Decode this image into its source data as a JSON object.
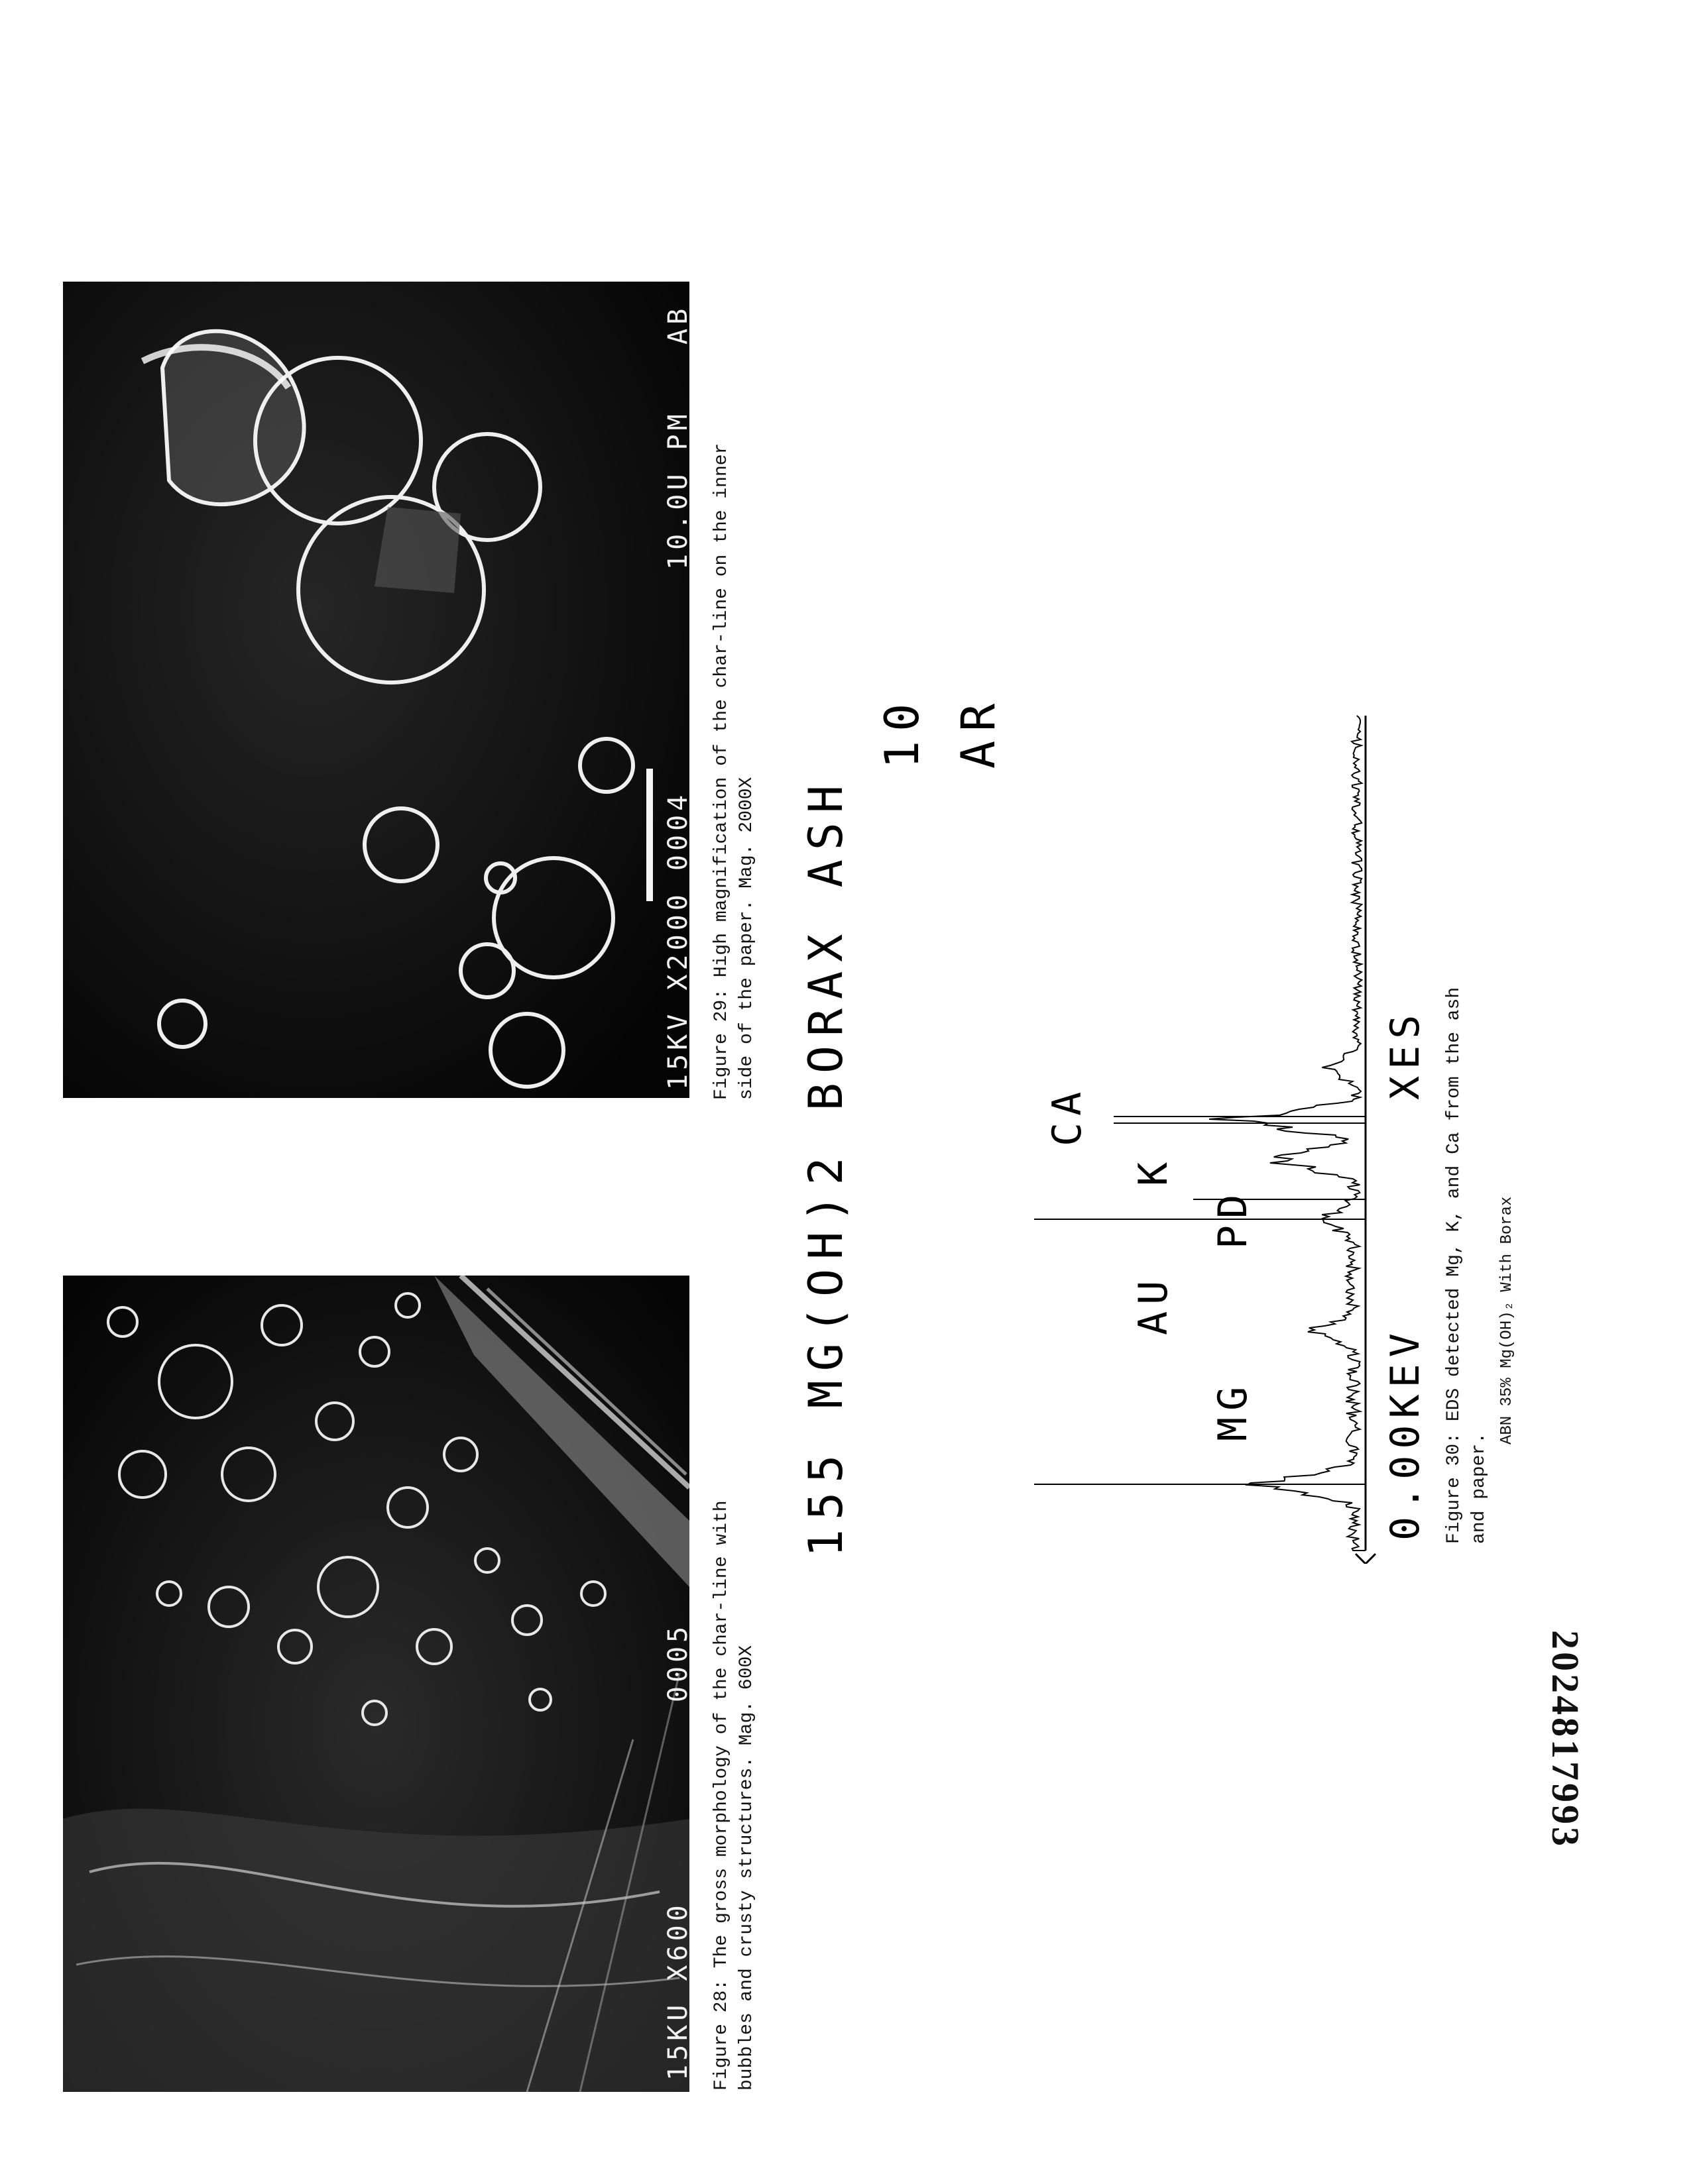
{
  "figure28": {
    "caption_line1": "Figure 28: The gross morphology of the char-line with",
    "caption_line2": "bubbles and crusty structures. Mag. 600X",
    "micrograph_label_left": "15KU X600",
    "micrograph_label_right": "0005"
  },
  "figure29": {
    "caption_line1": "Figure 29: High magnification of the char-line on the inner",
    "caption_line2": "side of the paper. Mag. 2000X",
    "micrograph_label": "15KV X2000   0004",
    "scale_label": "10.0U PM",
    "corner_mark": "AB"
  },
  "eds": {
    "header_line1": "155 MG(OH)2 BORAX  ASH",
    "header_line2": "10",
    "header_line3": "AR",
    "peak_labels": [
      "MG",
      "AU",
      "PD",
      "K",
      "CA"
    ],
    "axis_left": "0.00KEV",
    "axis_right": "XES",
    "caption_line1": "Figure 30: EDS detected Mg, K, and Ca from the ash",
    "caption_line2": "and paper.",
    "sample_label": "ABN 35% Mg(OH)₂ With Borax"
  },
  "document_number": "2024817993"
}
